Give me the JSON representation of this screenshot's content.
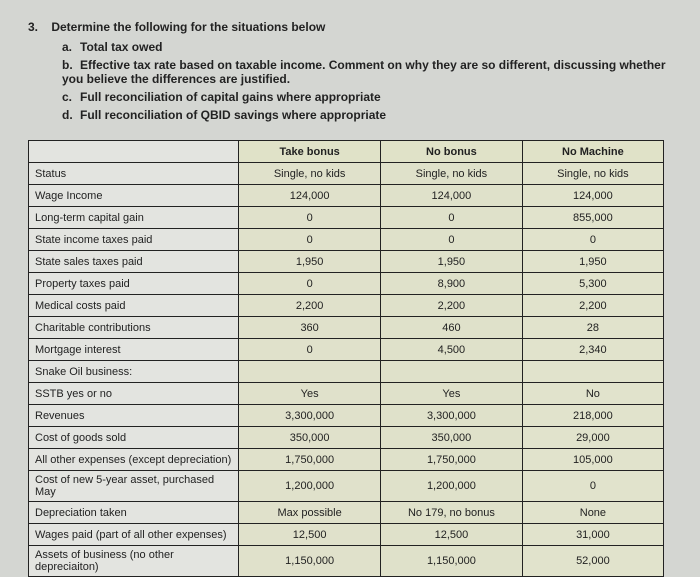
{
  "question": {
    "number": "3.",
    "prompt": "Determine the following for the situations below",
    "parts": [
      {
        "lbl": "a.",
        "txt": "Total tax owed"
      },
      {
        "lbl": "b.",
        "txt": "Effective tax rate based on taxable income. Comment on why they are so different, discussing whether you believe the differences are justified."
      },
      {
        "lbl": "c.",
        "txt": "Full reconciliation of capital gains where appropriate"
      },
      {
        "lbl": "d.",
        "txt": "Full reconciliation of QBID savings where appropriate"
      }
    ]
  },
  "table": {
    "columns": [
      "Take bonus",
      "No bonus",
      "No Machine"
    ],
    "rows": [
      {
        "label": "Status",
        "cells": [
          "Single, no kids",
          "Single, no kids",
          "Single, no kids"
        ]
      },
      {
        "label": "Wage Income",
        "cells": [
          "124,000",
          "124,000",
          "124,000"
        ]
      },
      {
        "label": "Long-term capital gain",
        "cells": [
          "0",
          "0",
          "855,000"
        ]
      },
      {
        "label": "State income taxes paid",
        "cells": [
          "0",
          "0",
          "0"
        ]
      },
      {
        "label": "State sales taxes paid",
        "cells": [
          "1,950",
          "1,950",
          "1,950"
        ]
      },
      {
        "label": "Property taxes paid",
        "cells": [
          "0",
          "8,900",
          "5,300"
        ]
      },
      {
        "label": "Medical costs paid",
        "cells": [
          "2,200",
          "2,200",
          "2,200"
        ]
      },
      {
        "label": "Charitable contributions",
        "cells": [
          "360",
          "460",
          "28"
        ]
      },
      {
        "label": "Mortgage interest",
        "cells": [
          "0",
          "4,500",
          "2,340"
        ]
      },
      {
        "label": "Snake Oil business:",
        "cells": [
          "",
          "",
          ""
        ]
      },
      {
        "label": "SSTB yes or no",
        "cells": [
          "Yes",
          "Yes",
          "No"
        ]
      },
      {
        "label": "Revenues",
        "cells": [
          "3,300,000",
          "3,300,000",
          "218,000"
        ]
      },
      {
        "label": "Cost of goods sold",
        "cells": [
          "350,000",
          "350,000",
          "29,000"
        ]
      },
      {
        "label": "All other expenses (except depreciation)",
        "cells": [
          "1,750,000",
          "1,750,000",
          "105,000"
        ]
      },
      {
        "label": "Cost of new 5-year asset, purchased May",
        "cells": [
          "1,200,000",
          "1,200,000",
          "0"
        ]
      },
      {
        "label": "Depreciation taken",
        "cells": [
          "Max possible",
          "No 179, no bonus",
          "None"
        ]
      },
      {
        "label": "Wages paid (part of all other expenses)",
        "cells": [
          "12,500",
          "12,500",
          "31,000"
        ]
      },
      {
        "label": "Assets of business (no other depreciaiton)",
        "cells": [
          "1,150,000",
          "1,150,000",
          "52,000"
        ]
      }
    ]
  }
}
